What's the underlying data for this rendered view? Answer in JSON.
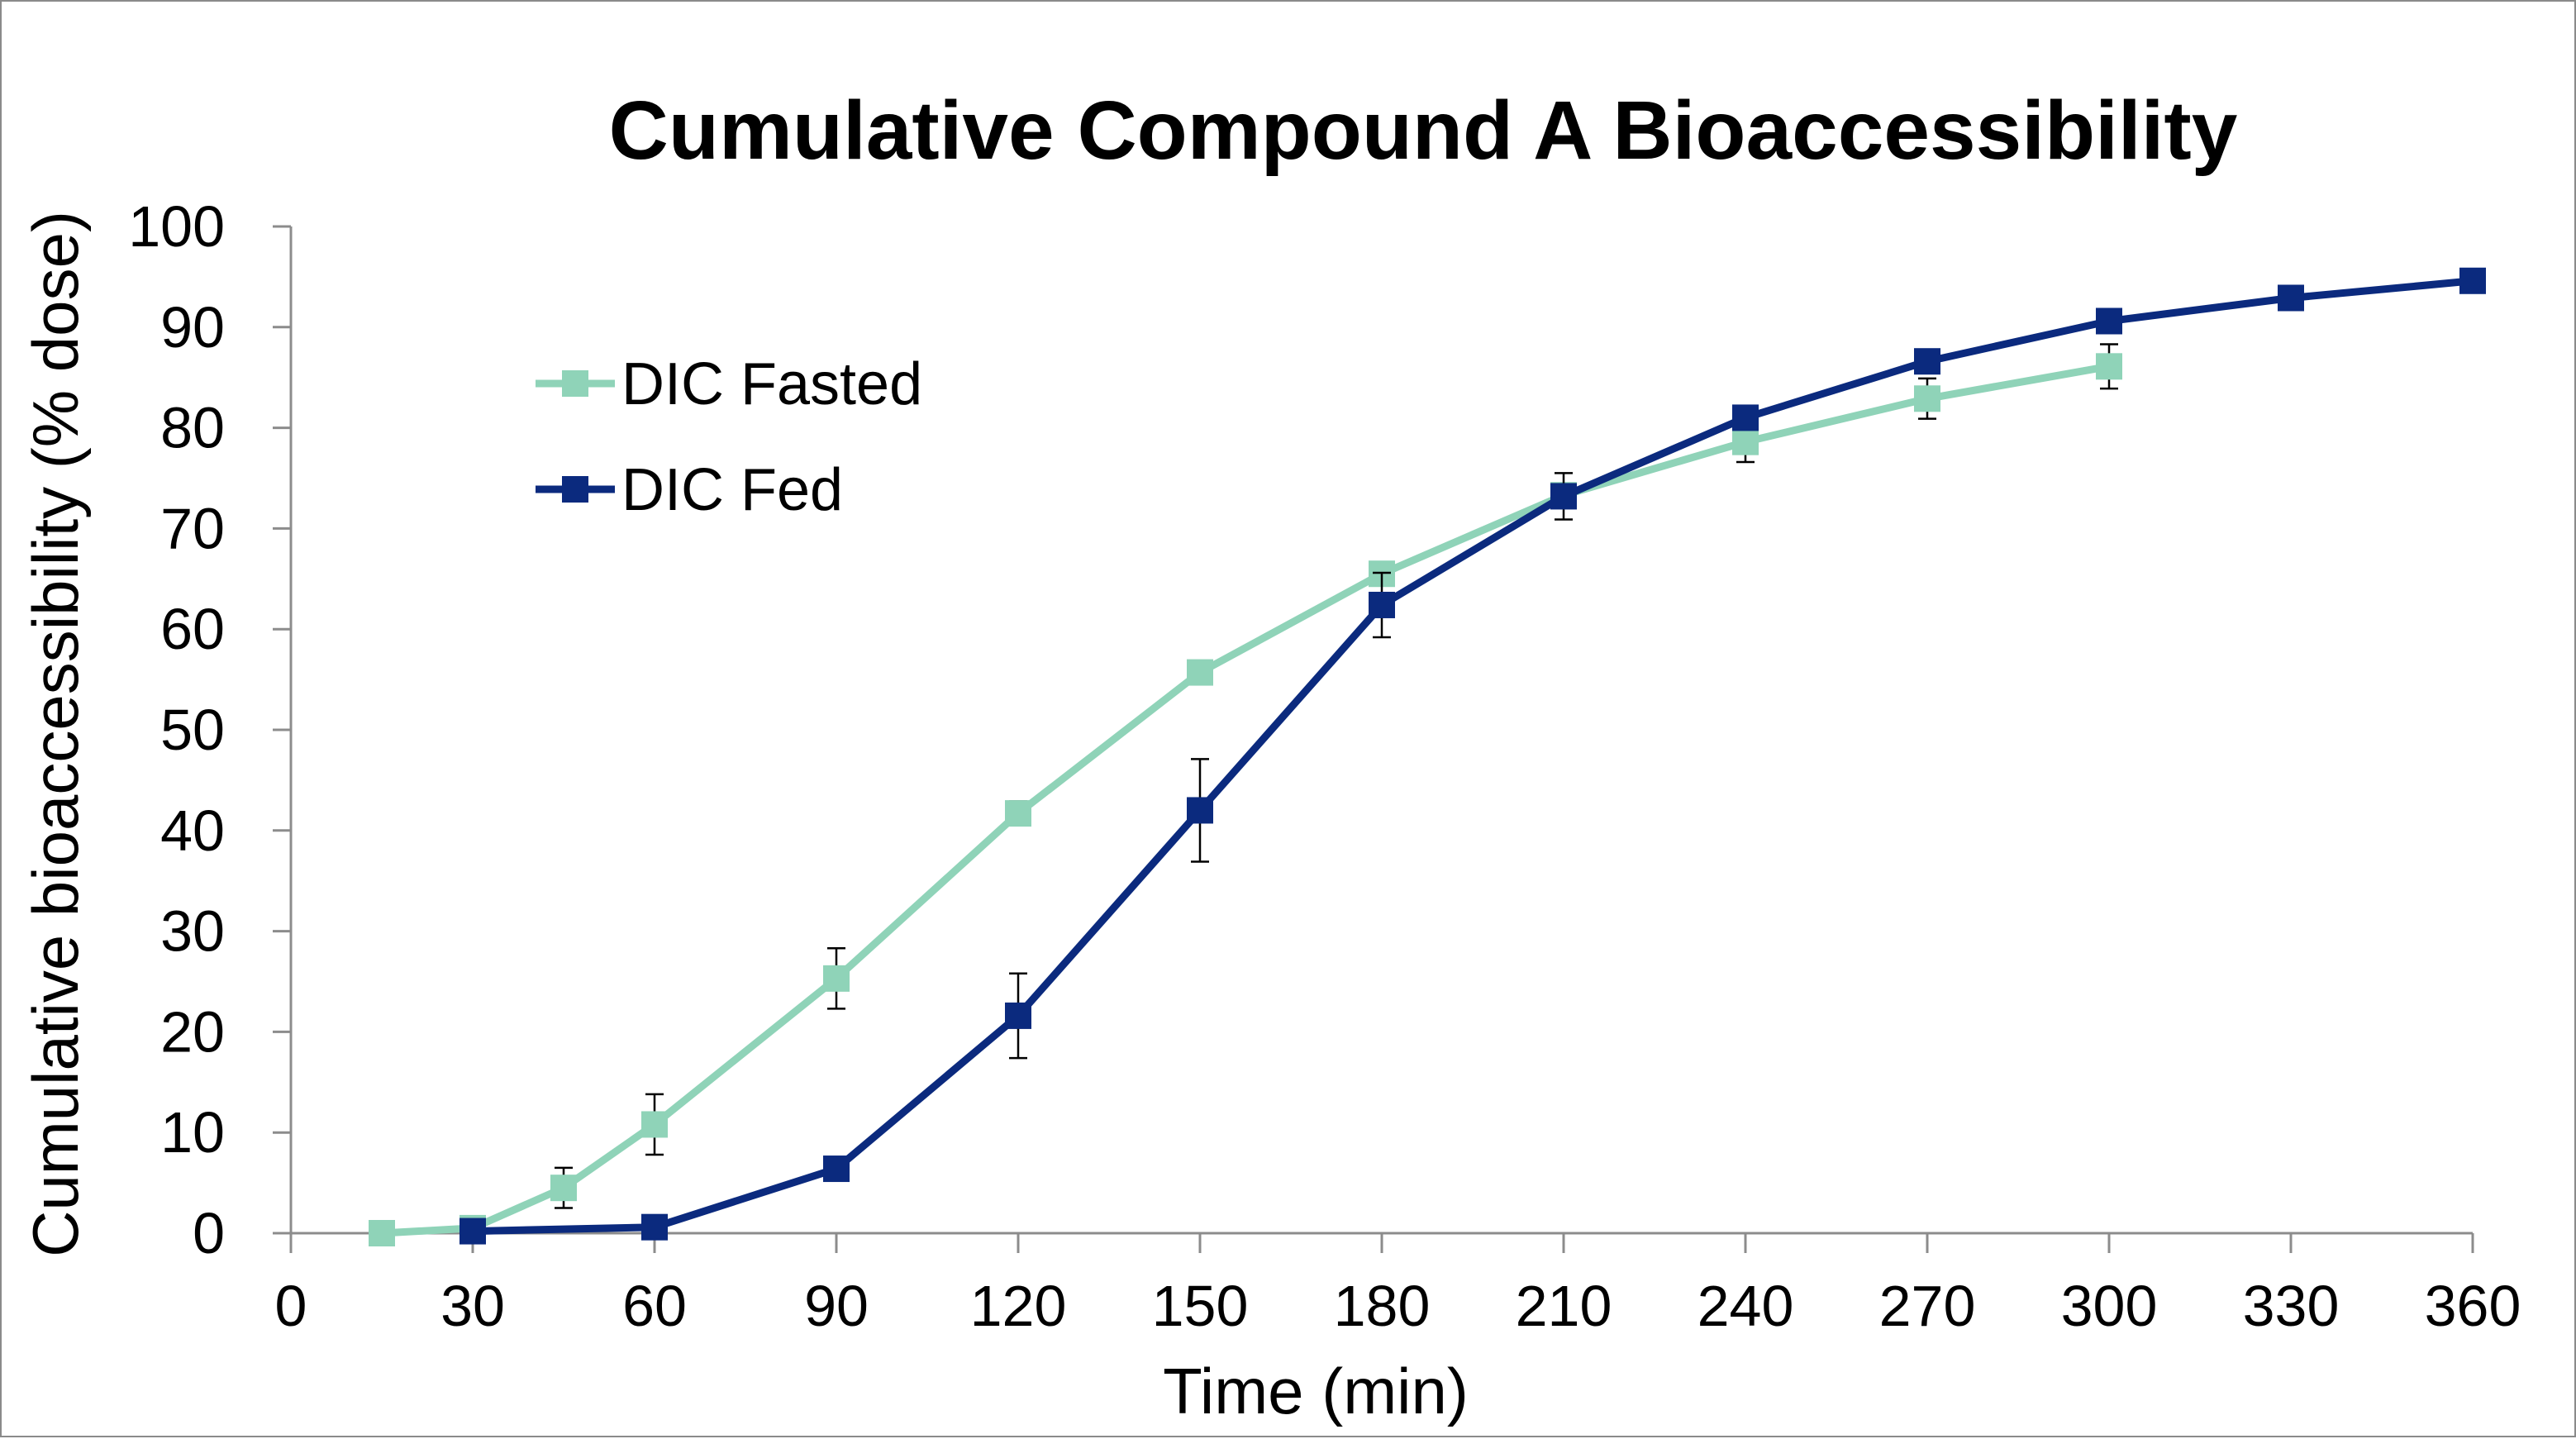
{
  "chart_data": {
    "type": "line",
    "title": "Cumulative Compound A Bioaccessibility",
    "xlabel": "Time (min)",
    "ylabel": "Cumulative bioaccessibility (% dose)",
    "xlim": [
      0,
      360
    ],
    "ylim": [
      0,
      100
    ],
    "xticks": [
      0,
      30,
      60,
      90,
      120,
      150,
      180,
      210,
      240,
      270,
      300,
      330,
      360
    ],
    "yticks": [
      0,
      10,
      20,
      30,
      40,
      50,
      60,
      70,
      80,
      90,
      100
    ],
    "grid": false,
    "legend_position": "top-left",
    "series": [
      {
        "name": "DIC Fasted",
        "color": "#8fd3b8",
        "marker": "square",
        "x": [
          15,
          30,
          45,
          60,
          90,
          120,
          150,
          180,
          210,
          240,
          270,
          300
        ],
        "y": [
          0,
          0.5,
          4.5,
          10.8,
          25.3,
          41.7,
          55.7,
          65.5,
          73.3,
          78.6,
          82.9,
          86.1
        ],
        "error": [
          0,
          0,
          2.0,
          3.0,
          3.0,
          1.2,
          0.5,
          0.8,
          0.8,
          2.0,
          2.0,
          2.2
        ]
      },
      {
        "name": "DIC Fed",
        "color": "#0b2a7e",
        "marker": "square",
        "x": [
          30,
          60,
          90,
          120,
          150,
          180,
          210,
          240,
          270,
          300,
          330,
          360
        ],
        "y": [
          0.2,
          0.6,
          6.4,
          21.6,
          42.0,
          62.4,
          73.2,
          81.0,
          86.6,
          90.6,
          92.9,
          94.6
        ],
        "error": [
          0,
          0,
          0,
          4.2,
          5.1,
          3.2,
          2.3,
          0.8,
          1.0,
          0.5,
          0.3,
          0.3
        ]
      }
    ]
  }
}
